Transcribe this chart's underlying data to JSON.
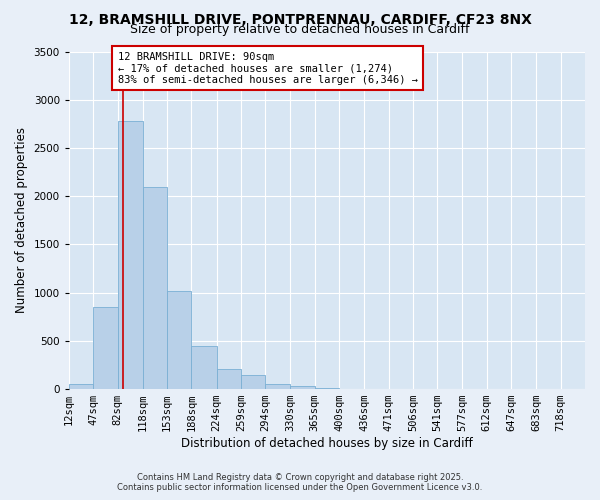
{
  "title_line1": "12, BRAMSHILL DRIVE, PONTPRENNAU, CARDIFF, CF23 8NX",
  "title_line2": "Size of property relative to detached houses in Cardiff",
  "xlabel": "Distribution of detached houses by size in Cardiff",
  "ylabel": "Number of detached properties",
  "bar_labels": [
    "12sqm",
    "47sqm",
    "82sqm",
    "118sqm",
    "153sqm",
    "188sqm",
    "224sqm",
    "259sqm",
    "294sqm",
    "330sqm",
    "365sqm",
    "400sqm",
    "436sqm",
    "471sqm",
    "506sqm",
    "541sqm",
    "577sqm",
    "612sqm",
    "647sqm",
    "683sqm",
    "718sqm"
  ],
  "bar_edges": [
    12,
    47,
    82,
    118,
    153,
    188,
    224,
    259,
    294,
    330,
    365,
    400,
    436,
    471,
    506,
    541,
    577,
    612,
    647,
    683,
    718,
    753
  ],
  "all_bar_values": [
    55,
    850,
    2780,
    2100,
    1020,
    450,
    205,
    145,
    55,
    30,
    8,
    3,
    1,
    0,
    0,
    0,
    0,
    0,
    0,
    0,
    0
  ],
  "bar_color": "#b8d0e8",
  "bar_edgecolor": "#7aafd4",
  "vline_x": 90,
  "vline_color": "#cc0000",
  "ylim": [
    0,
    3500
  ],
  "yticks": [
    0,
    500,
    1000,
    1500,
    2000,
    2500,
    3000,
    3500
  ],
  "annotation_title": "12 BRAMSHILL DRIVE: 90sqm",
  "annotation_line2": "← 17% of detached houses are smaller (1,274)",
  "annotation_line3": "83% of semi-detached houses are larger (6,346) →",
  "annotation_box_color": "#ffffff",
  "annotation_box_edgecolor": "#cc0000",
  "footnote1": "Contains HM Land Registry data © Crown copyright and database right 2025.",
  "footnote2": "Contains public sector information licensed under the Open Government Licence v3.0.",
  "background_color": "#e8eff8",
  "plot_bg_color": "#d8e6f3",
  "grid_color": "#ffffff",
  "title_fontsize": 10,
  "subtitle_fontsize": 9,
  "axis_label_fontsize": 8.5,
  "tick_fontsize": 7.5,
  "footnote_fontsize": 6
}
